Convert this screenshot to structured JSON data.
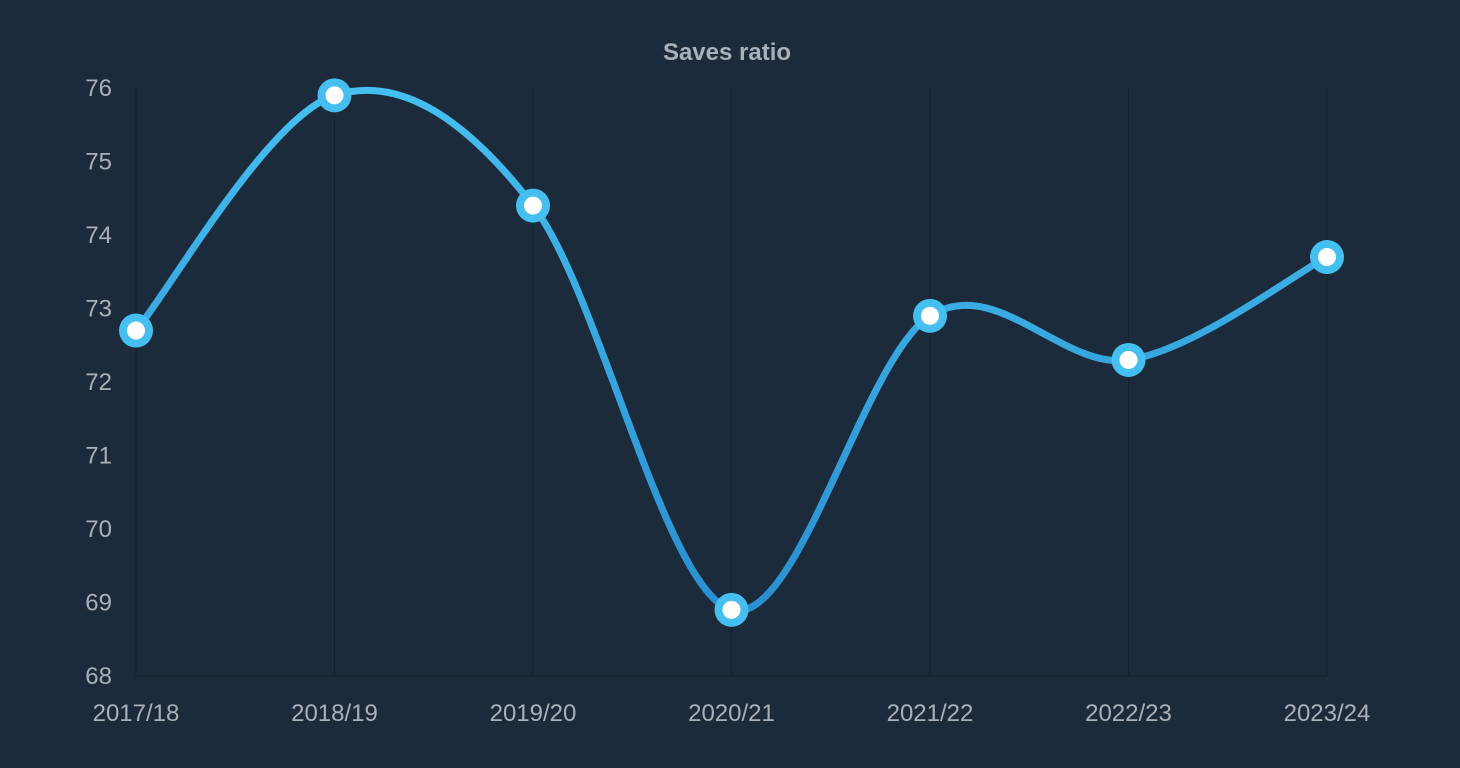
{
  "chart_data": {
    "type": "line",
    "title": "Saves ratio",
    "xlabel": "",
    "ylabel": "",
    "categories": [
      "2017/18",
      "2018/19",
      "2019/20",
      "2020/21",
      "2021/22",
      "2022/23",
      "2023/24"
    ],
    "series": [
      {
        "values": [
          72.7,
          75.9,
          74.4,
          68.9,
          72.9,
          72.3,
          73.7
        ],
        "color": "#3fb8ee"
      }
    ],
    "ylim": [
      68,
      76
    ],
    "yticks": [
      "68",
      "69",
      "70",
      "71",
      "72",
      "73",
      "74",
      "75",
      "76"
    ],
    "smooth": true,
    "grid": {
      "vertical": true,
      "horizontal": false
    },
    "legend": "none"
  },
  "colors": {
    "background": "#1c2b3b",
    "line_top": "#45bff0",
    "line_bottom": "#2a8fd0",
    "marker_fill": "#ffffff",
    "text": "#aab0b8"
  }
}
